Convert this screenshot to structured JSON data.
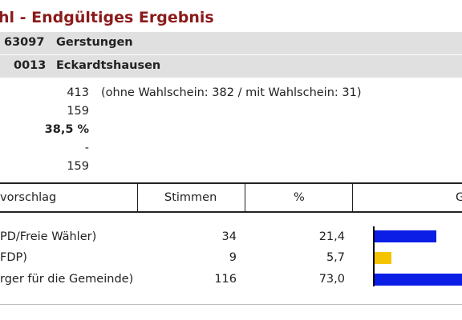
{
  "page": {
    "title": "hl - Endgültiges Ergebnis"
  },
  "municipality": {
    "code": "63097",
    "name": "Gerstungen"
  },
  "district": {
    "code": "0013",
    "name": "Eckardtshausen"
  },
  "stats": {
    "eligible": "413",
    "eligible_note": "(ohne Wahlschein: 382 / mit Wahlschein: 31)",
    "voters": "159",
    "turnout": "38,5 %",
    "invalid": "-",
    "valid": "159"
  },
  "table": {
    "headers": {
      "proposal": "vorschlag",
      "votes": "Stimmen",
      "percent": "%",
      "chart": "G"
    },
    "rows": [
      {
        "name": "PD/Freie Wähler)",
        "votes": "34",
        "percent": "21,4",
        "share": 21.4,
        "color": "#0a1ee6"
      },
      {
        "name": "FDP)",
        "votes": "9",
        "percent": "5,7",
        "share": 5.7,
        "color": "#f5c400"
      },
      {
        "name": "rger für die Gemeinde)",
        "votes": "116",
        "percent": "73,0",
        "share": 73.0,
        "color": "#0a1ee6"
      }
    ]
  }
}
